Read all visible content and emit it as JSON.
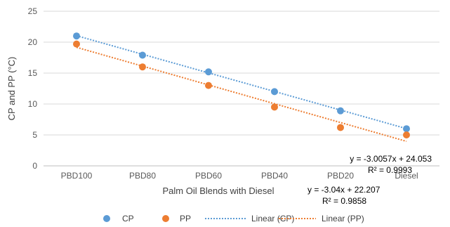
{
  "chart_data": {
    "type": "scatter",
    "categories": [
      "PBD100",
      "PBD80",
      "PBD60",
      "PBD40",
      "PBD20",
      "Diesel"
    ],
    "series": [
      {
        "name": "CP",
        "values": [
          21.0,
          17.9,
          15.2,
          12.0,
          8.9,
          6.0
        ],
        "color": "#5b9bd5"
      },
      {
        "name": "PP",
        "values": [
          19.7,
          16.0,
          13.0,
          9.5,
          6.2,
          5.0
        ],
        "color": "#ed7d31"
      }
    ],
    "trendlines": [
      {
        "name": "Linear (CP)",
        "slope": -3.0057,
        "intercept": 24.053,
        "color": "#5b9bd5",
        "equation": "y = -3.0057x + 24.053",
        "r2": "R² = 0.9993"
      },
      {
        "name": "Linear (PP)",
        "slope": -3.04,
        "intercept": 22.207,
        "color": "#ed7d31",
        "equation": "y = -3.04x + 22.207",
        "r2": "R² = 0.9858"
      }
    ],
    "xlabel": "Palm Oil Blends with Diesel",
    "ylabel": "CP and PP (°C)",
    "ylim": [
      0,
      25
    ],
    "yticks": [
      0,
      5,
      10,
      15,
      20,
      25
    ],
    "grid": true,
    "legend": "bottom"
  }
}
